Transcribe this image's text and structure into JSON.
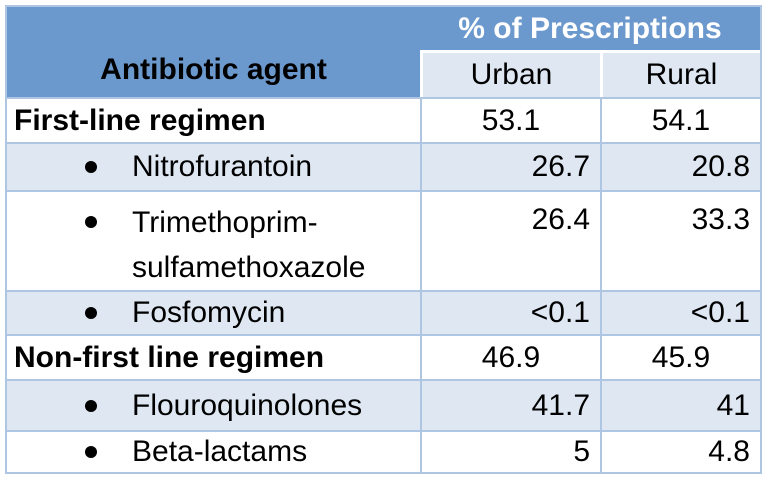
{
  "table": {
    "header": {
      "group_label": "% of Prescriptions",
      "agent_label": "Antibiotic agent",
      "urban_label": "Urban",
      "rural_label": "Rural"
    },
    "rows": [
      {
        "label": "First-line regimen",
        "style": "section",
        "urban": "53.1",
        "rural": "54.1"
      },
      {
        "label": "Nitrofurantoin",
        "style": "bullet",
        "urban": "26.7",
        "rural": "20.8"
      },
      {
        "label": "Trimethoprim-sulfamethoxazole",
        "style": "bullet",
        "urban": "26.4",
        "rural": "33.3"
      },
      {
        "label": "Fosfomycin",
        "style": "bullet",
        "urban": "<0.1",
        "rural": "<0.1"
      },
      {
        "label": "Non-first line regimen",
        "style": "section",
        "urban": "46.9",
        "rural": "45.9"
      },
      {
        "label": "Flouroquinolones",
        "style": "bullet",
        "urban": "41.7",
        "rural": "41"
      },
      {
        "label": "Beta-lactams",
        "style": "bullet",
        "urban": "5",
        "rural": "4.8"
      }
    ],
    "colors": {
      "header_blue": "#6c99cd",
      "band_blue": "#dee7f2",
      "border_blue": "#aec6e2",
      "header_text": "#ffffff",
      "body_text": "#000000"
    }
  },
  "chart_data": {
    "type": "table",
    "title": "% of Prescriptions",
    "columns": [
      "Antibiotic agent",
      "Urban",
      "Rural"
    ],
    "rows": [
      [
        "First-line regimen",
        53.1,
        54.1
      ],
      [
        "Nitrofurantoin",
        26.7,
        20.8
      ],
      [
        "Trimethoprim-sulfamethoxazole",
        26.4,
        33.3
      ],
      [
        "Fosfomycin",
        "<0.1",
        "<0.1"
      ],
      [
        "Non-first line regimen",
        46.9,
        45.9
      ],
      [
        "Flouroquinolones",
        41.7,
        41
      ],
      [
        "Beta-lactams",
        5,
        4.8
      ]
    ],
    "notes": "Section rows (First-line regimen, Non-first line regimen) are bold with centered values; bulleted sub-rows have right-aligned values; banded light-blue rows alternate."
  }
}
